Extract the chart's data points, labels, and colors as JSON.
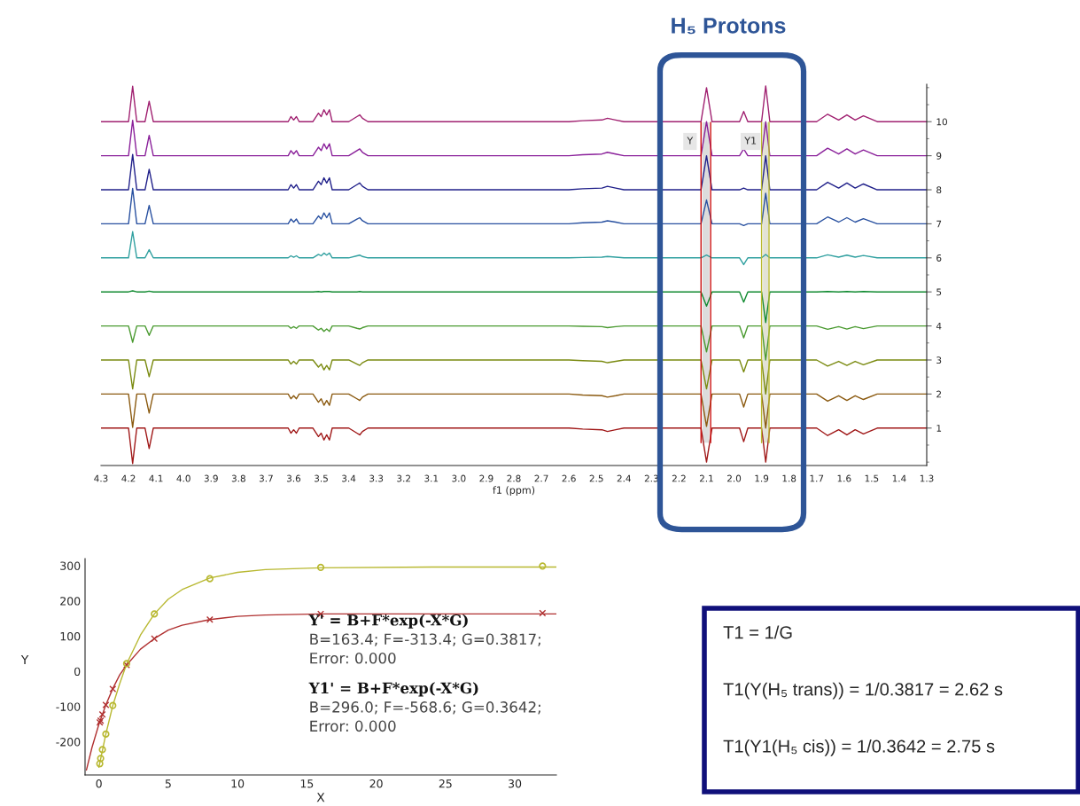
{
  "chart_data": [
    {
      "type": "line",
      "title": "H₅ Protons",
      "xlabel": "f1 (ppm)",
      "xlim": [
        4.3,
        1.3
      ],
      "ylim": [
        -0.1,
        11.1
      ],
      "xticks": [
        4.3,
        4.2,
        4.1,
        {
          "value": 4,
          "label": "4.0"
        },
        3.9,
        3.8,
        3.7,
        3.6,
        3.5,
        3.4,
        3.3,
        3.2,
        3.1,
        {
          "value": 3,
          "label": "3.0"
        },
        2.9,
        2.8,
        2.7,
        2.6,
        2.5,
        2.4,
        2.3,
        2.2,
        2.1,
        {
          "value": 2,
          "label": "2.0"
        },
        1.9,
        1.8,
        1.7,
        1.6,
        1.5,
        1.4,
        1.3
      ],
      "yticks": [
        1,
        2,
        3,
        4,
        5,
        6,
        7,
        8,
        9,
        10
      ],
      "bands": [
        {
          "axis": "x",
          "from": 2.115,
          "to": 2.09,
          "label": "Y",
          "color": "#dcdcdc"
        },
        {
          "axis": "x",
          "from": 1.895,
          "to": 1.875,
          "label": "Y1",
          "color": "#e2e2d6"
        }
      ],
      "ref_lines": [
        {
          "axis": "x",
          "value": 2.12,
          "color": "#cc1010"
        },
        {
          "axis": "x",
          "value": 2.085,
          "color": "#cc1010"
        },
        {
          "axis": "x",
          "value": 1.9,
          "color": "#b8b830"
        },
        {
          "axis": "x",
          "value": 1.873,
          "color": "#b8b830"
        }
      ],
      "x": [
        4.3,
        4.2,
        4.185,
        4.17,
        4.14,
        4.125,
        4.11,
        3.62,
        3.61,
        3.6,
        3.59,
        3.58,
        3.53,
        3.51,
        3.5,
        3.49,
        3.48,
        3.47,
        3.46,
        3.4,
        3.37,
        3.36,
        3.35,
        3.33,
        2.6,
        2.55,
        2.48,
        2.46,
        2.43,
        2.4,
        2.12,
        2.1,
        2.08,
        1.98,
        1.965,
        1.95,
        1.9,
        1.885,
        1.87,
        1.7,
        1.66,
        1.62,
        1.59,
        1.56,
        1.53,
        1.48,
        1.3
      ],
      "series": [
        {
          "color": "#a01818",
          "values": [
            1,
            1,
            -0.04,
            1,
            1,
            0.4,
            1,
            1,
            0.85,
            0.95,
            0.85,
            1,
            1,
            0.75,
            0.85,
            0.65,
            0.8,
            0.65,
            1,
            1,
            0.85,
            0.8,
            0.9,
            1,
            1,
            0.97,
            0.95,
            0.9,
            0.95,
            1,
            1,
            0,
            1,
            1,
            0.6,
            1,
            1,
            0,
            1,
            1,
            0.78,
            0.95,
            0.8,
            0.95,
            0.83,
            1,
            1
          ]
        },
        {
          "color": "#8b5a10",
          "values": [
            2,
            2,
            1.02,
            2,
            2,
            1.44,
            2,
            2,
            1.86,
            1.95,
            1.86,
            2,
            2,
            1.76,
            1.86,
            1.67,
            1.81,
            1.67,
            2,
            2,
            1.86,
            1.81,
            1.91,
            2,
            2,
            1.97,
            1.95,
            1.91,
            1.95,
            2,
            2,
            1.05,
            2,
            2,
            1.62,
            2,
            2,
            1.0,
            2,
            2,
            1.79,
            1.95,
            1.81,
            1.95,
            1.84,
            2,
            2
          ]
        },
        {
          "color": "#7a8a10",
          "values": [
            3,
            3,
            2.15,
            3,
            3,
            2.51,
            3,
            3,
            2.88,
            2.96,
            2.88,
            3,
            3,
            2.79,
            2.88,
            2.71,
            2.84,
            2.71,
            3,
            3,
            2.88,
            2.84,
            2.92,
            3,
            3,
            2.98,
            2.96,
            2.92,
            2.96,
            3,
            3,
            2.15,
            3,
            3,
            2.65,
            3,
            3,
            2.0,
            3,
            3,
            2.82,
            2.96,
            2.84,
            2.96,
            2.86,
            3,
            3
          ]
        },
        {
          "color": "#4a9a30",
          "values": [
            4,
            4,
            3.52,
            4,
            4,
            3.72,
            4,
            4,
            3.93,
            3.98,
            3.93,
            4,
            4,
            3.88,
            3.93,
            3.84,
            3.91,
            3.84,
            4,
            4,
            3.93,
            3.91,
            3.95,
            4,
            4,
            3.99,
            3.98,
            3.95,
            3.98,
            4,
            4,
            3.24,
            4,
            4,
            3.65,
            4,
            4,
            3.0,
            4,
            4,
            3.9,
            3.98,
            3.91,
            3.98,
            3.92,
            4,
            4
          ]
        },
        {
          "color": "#108a30",
          "values": [
            5,
            5,
            5.03,
            5,
            5,
            5.02,
            5,
            5,
            5,
            5,
            5,
            5,
            5,
            5.01,
            5,
            5.01,
            5.01,
            5.01,
            5,
            5,
            5,
            5.01,
            5,
            5,
            5,
            5,
            5,
            5,
            5,
            5,
            5,
            4.58,
            5,
            5,
            4.7,
            5,
            5,
            4.1,
            5,
            5,
            5.01,
            5,
            5.01,
            5,
            5.01,
            5,
            5
          ]
        },
        {
          "color": "#30a0a0",
          "values": [
            6,
            6,
            6.77,
            6,
            6,
            6.24,
            6,
            6,
            6.06,
            6.02,
            6.06,
            6,
            6,
            6.1,
            6.06,
            6.14,
            6.08,
            6.14,
            6,
            6,
            6.06,
            6.08,
            6.04,
            6,
            6,
            6.01,
            6.02,
            6.04,
            6.02,
            6,
            6,
            6.08,
            6,
            6,
            5.8,
            6,
            6,
            6.1,
            6,
            6,
            6.09,
            6.02,
            6.08,
            6.02,
            6.07,
            6,
            6
          ]
        },
        {
          "color": "#2850a0",
          "values": [
            7,
            7,
            8.04,
            7,
            7,
            7.54,
            7,
            7,
            7.14,
            7.05,
            7.14,
            7,
            7,
            7.23,
            7.14,
            7.32,
            7.18,
            7.32,
            7,
            7,
            7.14,
            7.18,
            7.09,
            7,
            7,
            7.03,
            7.05,
            7.09,
            7.05,
            7,
            7,
            7.7,
            7,
            7,
            6.95,
            7,
            7,
            7.9,
            7,
            7,
            7.2,
            7.05,
            7.18,
            7.05,
            7.15,
            7,
            7
          ]
        },
        {
          "color": "#20208a",
          "values": [
            8,
            8,
            9.04,
            8,
            8,
            8.6,
            8,
            8,
            8.15,
            8.05,
            8.15,
            8,
            8,
            8.25,
            8.15,
            8.35,
            8.2,
            8.35,
            8,
            8,
            8.15,
            8.2,
            8.1,
            8,
            8,
            8.03,
            8.05,
            8.1,
            8.05,
            8,
            8,
            9.0,
            8,
            8,
            8.05,
            8,
            8,
            9.0,
            8,
            8,
            8.22,
            8.05,
            8.2,
            8.05,
            8.17,
            8,
            8
          ]
        },
        {
          "color": "#8a209a",
          "values": [
            9,
            9,
            10.04,
            9,
            9,
            9.6,
            9,
            9,
            9.15,
            9.05,
            9.15,
            9,
            9,
            9.25,
            9.15,
            9.35,
            9.2,
            9.35,
            9,
            9,
            9.15,
            9.2,
            9.1,
            9,
            9,
            9.03,
            9.05,
            9.1,
            9.05,
            9,
            9,
            10.0,
            9,
            9,
            9.2,
            9,
            9,
            10.0,
            9,
            9,
            9.22,
            9.05,
            9.2,
            9.05,
            9.17,
            9,
            9
          ]
        },
        {
          "color": "#a02070",
          "values": [
            10,
            10,
            11.04,
            10,
            10,
            10.6,
            10,
            10,
            10.15,
            10.05,
            10.15,
            10,
            10,
            10.25,
            10.15,
            10.35,
            10.2,
            10.35,
            10,
            10,
            10.15,
            10.2,
            10.1,
            10,
            10,
            10.03,
            10.05,
            10.1,
            10.05,
            10,
            10,
            11.0,
            10,
            10,
            10.3,
            10,
            10,
            11.05,
            10,
            10,
            10.22,
            10.05,
            10.2,
            10.05,
            10.17,
            10,
            10
          ]
        }
      ]
    },
    {
      "type": "line",
      "xlabel": "X",
      "ylabel": "Y",
      "xlim": [
        -1,
        33
      ],
      "ylim": [
        -294,
        320
      ],
      "xticks": [
        0,
        5,
        10,
        15,
        20,
        25,
        30
      ],
      "yticks": [
        {
          "value": -200,
          "label": "-200"
        },
        {
          "value": -100,
          "label": "-100"
        },
        0,
        100,
        200,
        300
      ],
      "annotations": [
        "Y' = B+F*exp(-X*G)",
        "B=163.4; F=-313.4; G=0.3817;",
        "Error: 0.000",
        "Y1' = B+F*exp(-X*G)",
        "B=296.0; F=-568.6; G=0.3642;",
        "Error: 0.000"
      ],
      "series": [
        {
          "type": "line",
          "color": "#b03030",
          "x": [
            -0.9,
            -0.5,
            0,
            0.5,
            1,
            1.5,
            2,
            3,
            4,
            5,
            6,
            8,
            10,
            12,
            16,
            24,
            33
          ],
          "values": [
            -280,
            -216,
            -150,
            -95,
            -49,
            -10,
            18,
            63,
            93,
            117,
            131,
            147,
            156,
            160,
            163,
            163,
            163
          ]
        },
        {
          "type": "line",
          "color": "#b8b830",
          "x": [
            0,
            0.5,
            1,
            1.5,
            2,
            3,
            4,
            5,
            6,
            8,
            10,
            12,
            16,
            24,
            33
          ],
          "values": [
            -272,
            -178,
            -97,
            -35,
            21,
            103,
            163,
            205,
            232,
            265,
            281,
            289,
            294,
            296,
            296
          ]
        },
        {
          "type": "scatter",
          "marker": "cross",
          "color": "#b03030",
          "x": [
            0.0625,
            0.125,
            0.25,
            0.5,
            1,
            2,
            4,
            8,
            16,
            32
          ],
          "values": [
            -145,
            -140,
            -122,
            -95,
            -50,
            18,
            93,
            147,
            163,
            165
          ]
        },
        {
          "type": "scatter",
          "marker": "circle",
          "color": "#b8b830",
          "x": [
            0.0625,
            0.125,
            0.25,
            0.5,
            1,
            2,
            4,
            8,
            16,
            32
          ],
          "values": [
            -262,
            -247,
            -222,
            -178,
            -97,
            22,
            163,
            263,
            295,
            299
          ]
        }
      ]
    },
    {
      "type": "other",
      "annotations": [
        "T1 = 1/G",
        "T1(Y(H₅ trans)) = 1/0.3817 = 2.62 s",
        "T1(Y1(H₅ cis)) = 1/0.3642 = 2.75 s"
      ]
    }
  ]
}
